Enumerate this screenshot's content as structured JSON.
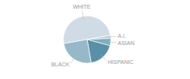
{
  "chart_data": {
    "type": "pie",
    "categories": [
      "WHITE",
      "A.I.",
      "ASIAN",
      "HISPANIC",
      "BLACK"
    ],
    "values": [
      50,
      2,
      5,
      18,
      25
    ],
    "colors": [
      "#d0dce5",
      "#b8cdd8",
      "#7aafc0",
      "#5a8fa8",
      "#96b8c8"
    ]
  }
}
